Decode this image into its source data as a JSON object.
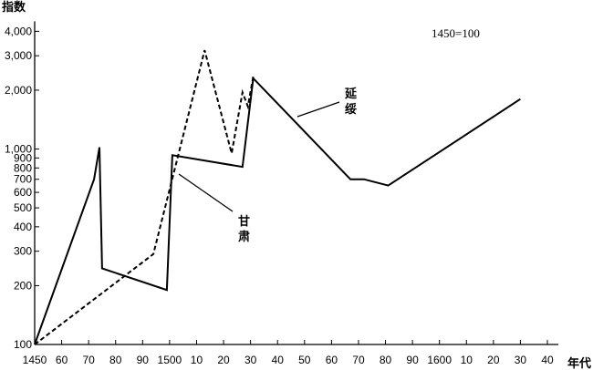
{
  "chart_data": {
    "type": "line",
    "scale": {
      "y": "log"
    },
    "title": "",
    "ylabel": "指数",
    "xlabel": "年代",
    "base_note": "1450=100",
    "xlim": [
      1450,
      1640
    ],
    "ylim": [
      100,
      4500
    ],
    "x_ticks": [
      {
        "value": 1450,
        "label": "1450"
      },
      {
        "value": 1460,
        "label": "60"
      },
      {
        "value": 1470,
        "label": "70"
      },
      {
        "value": 1480,
        "label": "80"
      },
      {
        "value": 1490,
        "label": "90"
      },
      {
        "value": 1500,
        "label": "1500"
      },
      {
        "value": 1510,
        "label": "10"
      },
      {
        "value": 1520,
        "label": "20"
      },
      {
        "value": 1530,
        "label": "30"
      },
      {
        "value": 1540,
        "label": "40"
      },
      {
        "value": 1550,
        "label": "50"
      },
      {
        "value": 1560,
        "label": "60"
      },
      {
        "value": 1570,
        "label": "70"
      },
      {
        "value": 1580,
        "label": "80"
      },
      {
        "value": 1590,
        "label": "90"
      },
      {
        "value": 1600,
        "label": "1600"
      },
      {
        "value": 1610,
        "label": "10"
      },
      {
        "value": 1620,
        "label": "20"
      },
      {
        "value": 1630,
        "label": "30"
      },
      {
        "value": 1640,
        "label": "40"
      }
    ],
    "y_ticks": [
      {
        "value": 100,
        "label": "100"
      },
      {
        "value": 200,
        "label": "200"
      },
      {
        "value": 300,
        "label": "300"
      },
      {
        "value": 400,
        "label": "400"
      },
      {
        "value": 500,
        "label": "500"
      },
      {
        "value": 600,
        "label": "600"
      },
      {
        "value": 700,
        "label": "700"
      },
      {
        "value": 800,
        "label": "800"
      },
      {
        "value": 900,
        "label": "900"
      },
      {
        "value": 1000,
        "label": "1,000"
      },
      {
        "value": 2000,
        "label": "2,000"
      },
      {
        "value": 3000,
        "label": "3,000"
      },
      {
        "value": 4000,
        "label": "4,000"
      }
    ],
    "series": [
      {
        "name": "延绥",
        "style": "solid",
        "color": "#000000",
        "points": [
          [
            1450,
            100
          ],
          [
            1472,
            700
          ],
          [
            1474,
            1020
          ],
          [
            1475,
            245
          ],
          [
            1499,
            190
          ],
          [
            1501,
            930
          ],
          [
            1527,
            810
          ],
          [
            1531,
            2300
          ],
          [
            1567,
            700
          ],
          [
            1572,
            700
          ],
          [
            1581,
            650
          ],
          [
            1630,
            1800
          ]
        ]
      },
      {
        "name": "甘肃",
        "style": "dashed",
        "color": "#000000",
        "points": [
          [
            1450,
            100
          ],
          [
            1494,
            290
          ],
          [
            1513,
            3200
          ],
          [
            1523,
            950
          ],
          [
            1527,
            1950
          ],
          [
            1529,
            1650
          ],
          [
            1531,
            2350
          ]
        ]
      }
    ],
    "annotations": [
      {
        "text": [
          "延",
          "绥"
        ],
        "series": "延绥"
      },
      {
        "text": [
          "甘",
          "肃"
        ],
        "series": "甘肃"
      }
    ],
    "grid": false,
    "legend": "none"
  }
}
